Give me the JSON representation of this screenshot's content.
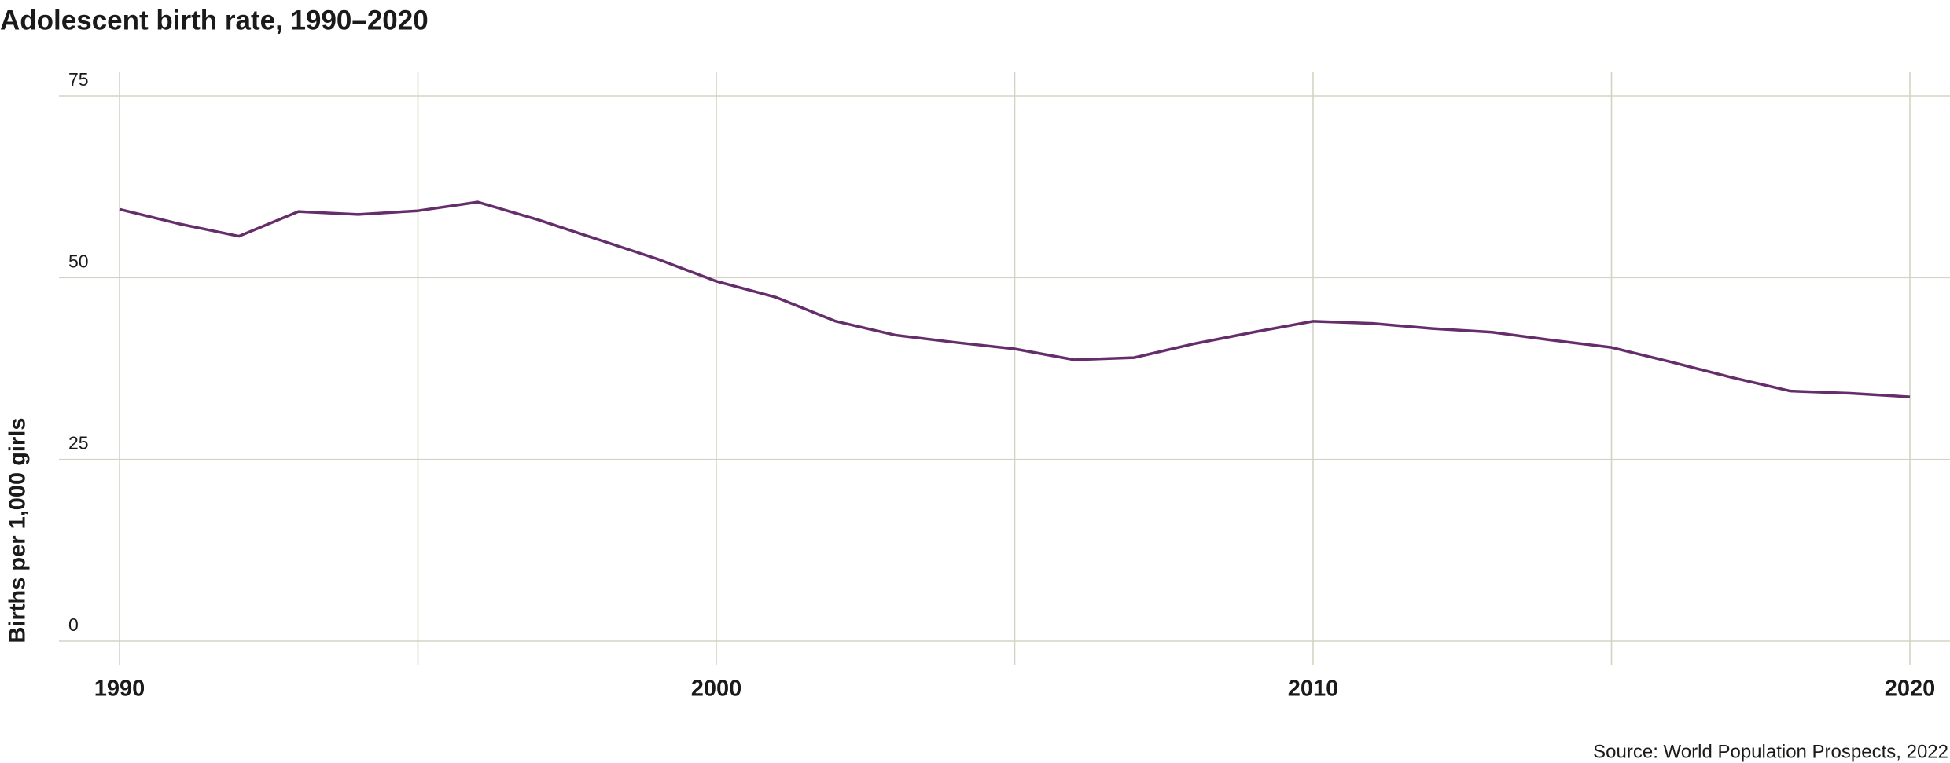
{
  "chart_data": {
    "type": "line",
    "title": "Adolescent birth rate, 1990–2020",
    "y_label": "Births per 1,000 girls",
    "source": "Source: World Population Prospects, 2022",
    "x": [
      1990,
      1991,
      1992,
      1993,
      1994,
      1995,
      1996,
      1997,
      1998,
      1999,
      2000,
      2001,
      2002,
      2003,
      2004,
      2005,
      2006,
      2007,
      2008,
      2009,
      2010,
      2011,
      2012,
      2013,
      2014,
      2015,
      2016,
      2017,
      2018,
      2019,
      2020
    ],
    "series": [
      {
        "name": "Adolescent birth rate",
        "color": "#652d6b",
        "values": [
          59.4,
          57.4,
          55.7,
          59.1,
          58.7,
          59.2,
          60.4,
          58.0,
          55.3,
          52.6,
          49.5,
          47.3,
          44.0,
          42.1,
          41.1,
          40.2,
          38.7,
          39.0,
          40.9,
          42.5,
          44.0,
          43.7,
          43.0,
          42.5,
          41.4,
          40.4,
          38.4,
          36.3,
          34.4,
          34.1,
          33.6
        ]
      }
    ],
    "xlim": [
      1990,
      2020
    ],
    "xticks": [
      1990,
      2000,
      2010,
      2020
    ],
    "x_minor_ticks": [
      1995,
      2005,
      2015
    ],
    "ylim": [
      0,
      75
    ],
    "yticks": [
      0,
      25,
      50,
      75
    ],
    "grid": true
  }
}
